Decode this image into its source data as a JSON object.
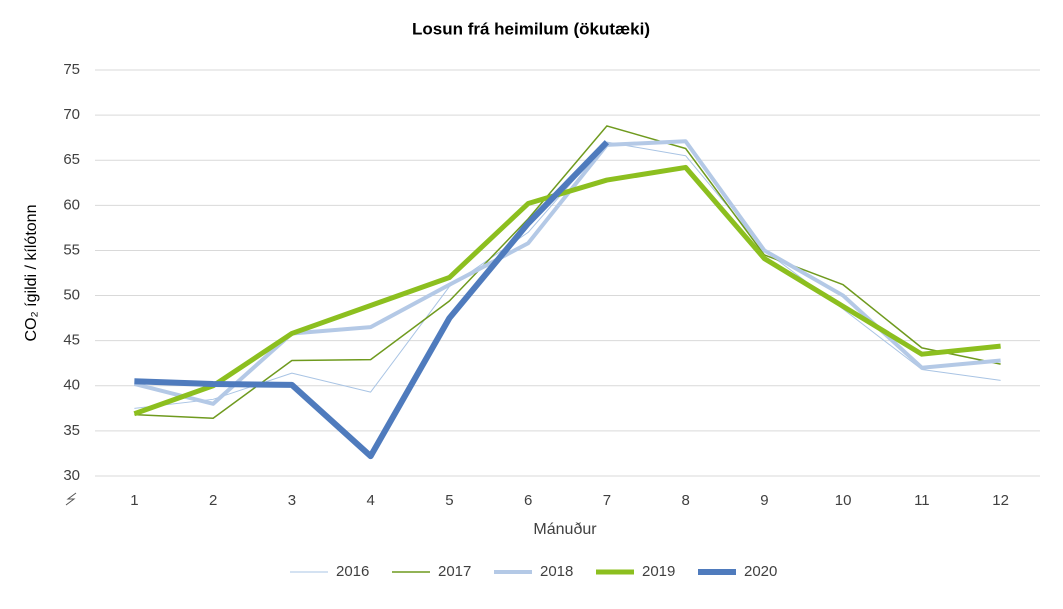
{
  "chart_data": {
    "type": "line",
    "title": "Losun frá heimilum (ökutæki)",
    "x_label": "Mánuður",
    "y_label": "CO₂ ígildi / kílótonn",
    "categories": [
      "1",
      "2",
      "3",
      "4",
      "5",
      "6",
      "7",
      "8",
      "9",
      "10",
      "11",
      "12"
    ],
    "series": [
      {
        "name": "2016",
        "color": "#a9c4e4",
        "width": 1,
        "values": [
          37.5,
          38.5,
          41.4,
          39.3,
          51.0,
          57.0,
          67.0,
          65.5,
          55.0,
          48.5,
          41.8,
          40.6
        ]
      },
      {
        "name": "2017",
        "color": "#6f9a1e",
        "width": 1.5,
        "values": [
          36.8,
          36.4,
          42.8,
          42.9,
          49.4,
          58.5,
          68.8,
          66.3,
          54.5,
          51.2,
          44.2,
          42.4
        ]
      },
      {
        "name": "2018",
        "color": "#b4c9e6",
        "width": 4,
        "values": [
          40.2,
          38.0,
          45.8,
          46.5,
          51.2,
          55.8,
          66.7,
          67.1,
          55.0,
          50.0,
          42.0,
          42.8
        ]
      },
      {
        "name": "2019",
        "color": "#8cbf1f",
        "width": 5,
        "values": [
          36.9,
          40.0,
          45.8,
          48.9,
          52.0,
          60.2,
          62.8,
          64.2,
          54.1,
          48.8,
          43.5,
          44.4
        ]
      },
      {
        "name": "2020",
        "color": "#4f7bbd",
        "width": 6,
        "values": [
          40.5,
          40.2,
          40.1,
          32.2,
          47.5,
          58.0,
          67.0,
          null,
          null,
          null,
          null,
          null
        ]
      }
    ],
    "ylim": [
      30,
      75
    ],
    "yticks": [
      30,
      35,
      40,
      45,
      50,
      55,
      60,
      65,
      70,
      75
    ],
    "grid": true,
    "legend": "bottom"
  }
}
